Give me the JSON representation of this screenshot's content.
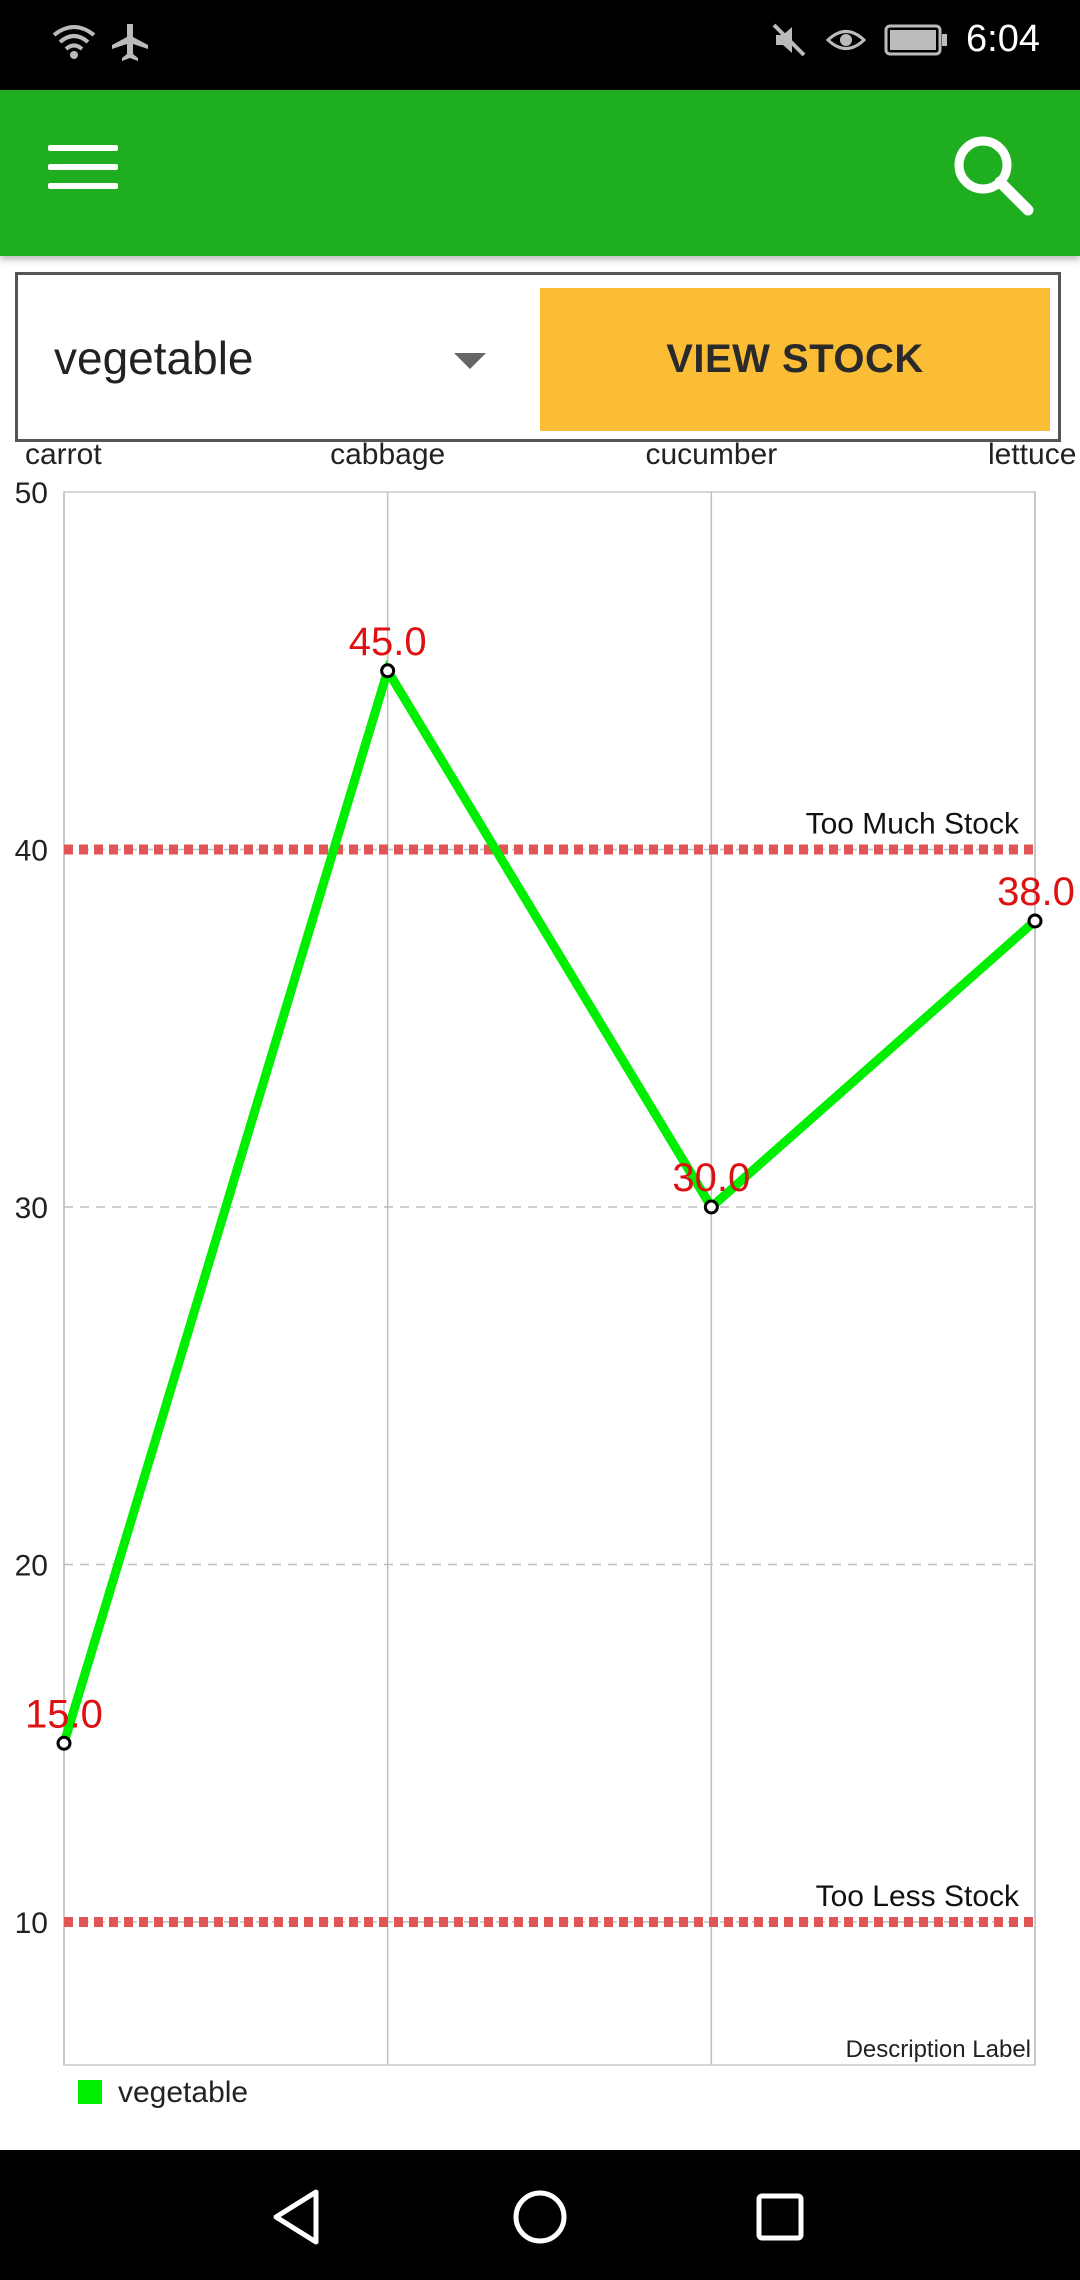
{
  "status_bar": {
    "time": "6:04",
    "icons": [
      "wifi-icon",
      "airplane-icon",
      "mute-icon",
      "eye-icon",
      "battery-icon"
    ]
  },
  "app_bar": {
    "menu_icon": "menu-icon",
    "search_icon": "search-icon",
    "color": "#1fae1f"
  },
  "controls": {
    "selected_category": "vegetable",
    "view_button_label": "VIEW STOCK",
    "button_color": "#fbbd36"
  },
  "chart_data": {
    "type": "line",
    "categories": [
      "carrot",
      "cabbage",
      "cucumber",
      "lettuce"
    ],
    "series": [
      {
        "name": "vegetable",
        "values": [
          15.0,
          45.0,
          30.0,
          38.0
        ],
        "color": "#00ee00"
      }
    ],
    "value_labels": [
      "15.0",
      "45.0",
      "30.0",
      "38.0"
    ],
    "ylim": [
      6,
      50
    ],
    "yticks": [
      10,
      20,
      30,
      40,
      50
    ],
    "limit_lines": [
      {
        "label": "Too Much Stock",
        "value": 40,
        "color": "#e05656"
      },
      {
        "label": "Too Less Stock",
        "value": 10,
        "color": "#e05656"
      }
    ],
    "description": "Description Label",
    "legend_position": "bottom-left",
    "label_color": "#dd1111",
    "grid": true
  },
  "nav_bar": {
    "icons": [
      "back-icon",
      "home-icon",
      "recents-icon"
    ]
  }
}
